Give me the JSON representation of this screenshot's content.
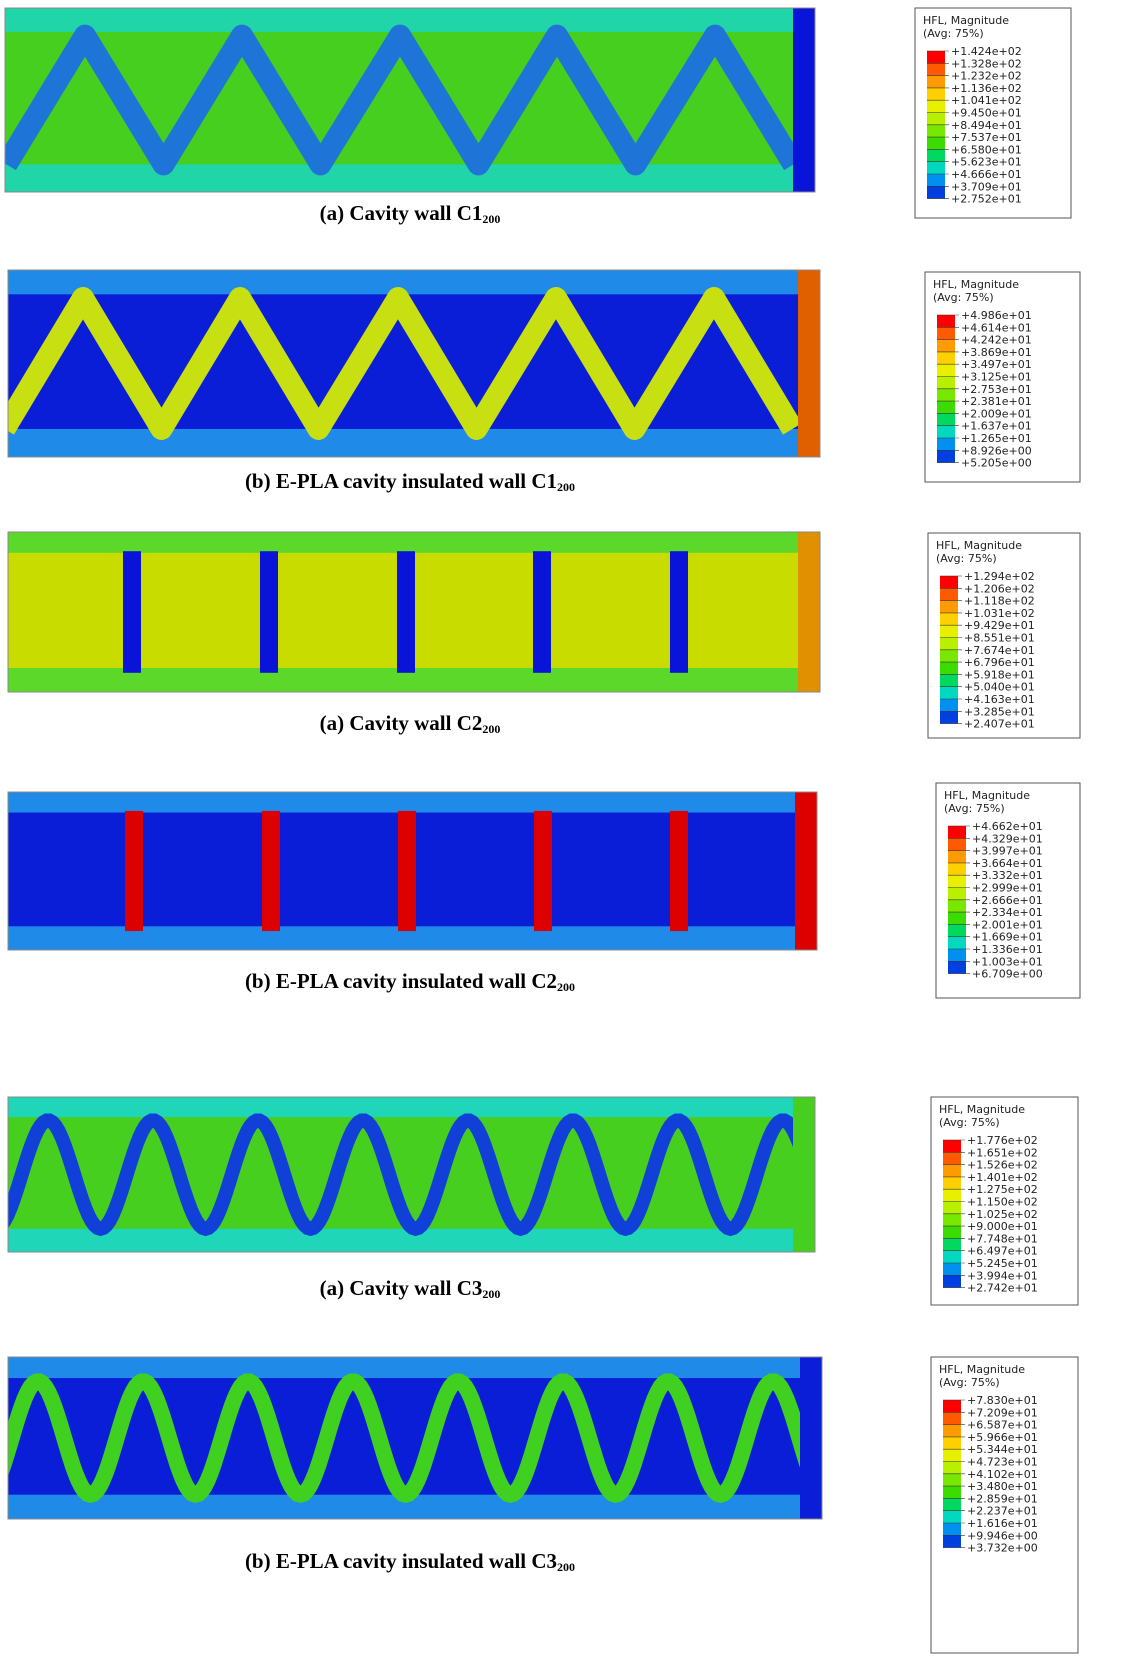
{
  "panels": [
    {
      "caption": {
        "text": "(a) Cavity wall C1",
        "sub": "200"
      },
      "legend": {
        "title": "HFL, Magnitude",
        "subtitle": "(Avg: 75%)",
        "labels": [
          "+1.424e+02",
          "+1.328e+02",
          "+1.232e+02",
          "+1.136e+02",
          "+1.041e+02",
          "+9.450e+01",
          "+8.494e+01",
          "+7.537e+01",
          "+6.580e+01",
          "+5.623e+01",
          "+4.666e+01",
          "+3.709e+01",
          "+2.752e+01"
        ]
      }
    },
    {
      "caption": {
        "text": "(b) E-PLA cavity insulated wall C1",
        "sub": "200"
      },
      "legend": {
        "title": "HFL, Magnitude",
        "subtitle": "(Avg: 75%)",
        "labels": [
          "+4.986e+01",
          "+4.614e+01",
          "+4.242e+01",
          "+3.869e+01",
          "+3.497e+01",
          "+3.125e+01",
          "+2.753e+01",
          "+2.381e+01",
          "+2.009e+01",
          "+1.637e+01",
          "+1.265e+01",
          "+8.926e+00",
          "+5.205e+00"
        ]
      }
    },
    {
      "caption": {
        "text": "(a) Cavity wall C2",
        "sub": "200"
      },
      "legend": {
        "title": "HFL, Magnitude",
        "subtitle": "(Avg: 75%)",
        "labels": [
          "+1.294e+02",
          "+1.206e+02",
          "+1.118e+02",
          "+1.031e+02",
          "+9.429e+01",
          "+8.551e+01",
          "+7.674e+01",
          "+6.796e+01",
          "+5.918e+01",
          "+5.040e+01",
          "+4.163e+01",
          "+3.285e+01",
          "+2.407e+01"
        ]
      }
    },
    {
      "caption": {
        "text": "(b) E-PLA cavity insulated wall C2",
        "sub": "200"
      },
      "legend": {
        "title": "HFL, Magnitude",
        "subtitle": "(Avg: 75%)",
        "labels": [
          "+4.662e+01",
          "+4.329e+01",
          "+3.997e+01",
          "+3.664e+01",
          "+3.332e+01",
          "+2.999e+01",
          "+2.666e+01",
          "+2.334e+01",
          "+2.001e+01",
          "+1.669e+01",
          "+1.336e+01",
          "+1.003e+01",
          "+6.709e+00"
        ]
      }
    },
    {
      "caption": {
        "text": "(a) Cavity wall C3",
        "sub": "200"
      },
      "legend": {
        "title": "HFL, Magnitude",
        "subtitle": "(Avg: 75%)",
        "labels": [
          "+1.776e+02",
          "+1.651e+02",
          "+1.526e+02",
          "+1.401e+02",
          "+1.275e+02",
          "+1.150e+02",
          "+1.025e+02",
          "+9.000e+01",
          "+7.748e+01",
          "+6.497e+01",
          "+5.245e+01",
          "+3.994e+01",
          "+2.742e+01"
        ]
      }
    },
    {
      "caption": {
        "text": "(b) E-PLA cavity insulated wall C3",
        "sub": "200"
      },
      "legend": {
        "title": "HFL, Magnitude",
        "subtitle": "(Avg: 75%)",
        "labels": [
          "+7.830e+01",
          "+7.209e+01",
          "+6.587e+01",
          "+5.966e+01",
          "+5.344e+01",
          "+4.723e+01",
          "+4.102e+01",
          "+3.480e+01",
          "+2.859e+01",
          "+2.237e+01",
          "+1.616e+01",
          "+9.946e+00",
          "+3.732e+00"
        ]
      }
    }
  ]
}
